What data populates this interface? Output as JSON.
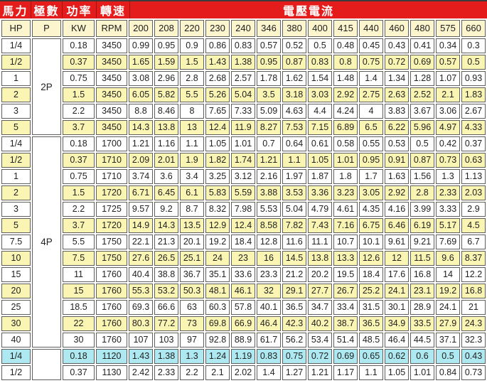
{
  "header": {
    "horsepower": "馬力",
    "poles": "極數",
    "power": "功率",
    "speed": "轉速",
    "voltage_current": "電壓電流"
  },
  "colors": {
    "accent_red": "#e41d1c",
    "row_yellow": "#fbf5b4",
    "row_blue": "#aee9f1",
    "header_cream": "#fdf5cd"
  },
  "table": {
    "columns": [
      "HP",
      "P",
      "KW",
      "RPM",
      "200",
      "208",
      "220",
      "230",
      "240",
      "346",
      "380",
      "400",
      "415",
      "440",
      "460",
      "480",
      "575",
      "660"
    ],
    "sections": [
      {
        "pole_label": "2P",
        "rows": [
          {
            "hp": "1/4",
            "kw": "0.18",
            "rpm": "3450",
            "highlight": "white",
            "currents": [
              "0.99",
              "0.95",
              "0.9",
              "0.86",
              "0.83",
              "0.57",
              "0.52",
              "0.5",
              "0.48",
              "0.45",
              "0.43",
              "0.41",
              "0.34",
              "0.3"
            ]
          },
          {
            "hp": "1/2",
            "kw": "0.37",
            "rpm": "3450",
            "highlight": "yellow",
            "currents": [
              "1.65",
              "1.59",
              "1.5",
              "1.43",
              "1.38",
              "0.95",
              "0.87",
              "0.83",
              "0.8",
              "0.75",
              "0.72",
              "0.69",
              "0.57",
              "0.5"
            ]
          },
          {
            "hp": "1",
            "kw": "0.75",
            "rpm": "3450",
            "highlight": "white",
            "currents": [
              "3.08",
              "2.96",
              "2.8",
              "2.68",
              "2.57",
              "1.78",
              "1.62",
              "1.54",
              "1.48",
              "1.4",
              "1.34",
              "1.28",
              "1.07",
              "0.93"
            ]
          },
          {
            "hp": "2",
            "kw": "1.5",
            "rpm": "3450",
            "highlight": "yellow",
            "currents": [
              "6.05",
              "5.82",
              "5.5",
              "5.26",
              "5.04",
              "3.5",
              "3.18",
              "3.03",
              "2.92",
              "2.75",
              "2.63",
              "2.52",
              "2.1",
              "1.83"
            ]
          },
          {
            "hp": "3",
            "kw": "2.2",
            "rpm": "3450",
            "highlight": "white",
            "currents": [
              "8.8",
              "8.46",
              "8",
              "7.65",
              "7.33",
              "5.09",
              "4.63",
              "4.4",
              "4.24",
              "4",
              "3.83",
              "3.67",
              "3.06",
              "2.67"
            ]
          },
          {
            "hp": "5",
            "kw": "3.7",
            "rpm": "3450",
            "highlight": "yellow",
            "currents": [
              "14.3",
              "13.8",
              "13",
              "12.4",
              "11.9",
              "8.27",
              "7.53",
              "7.15",
              "6.89",
              "6.5",
              "6.22",
              "5.96",
              "4.97",
              "4.33"
            ]
          }
        ]
      },
      {
        "pole_label": "4P",
        "rows": [
          {
            "hp": "1/4",
            "kw": "0.18",
            "rpm": "1700",
            "highlight": "white",
            "currents": [
              "1.21",
              "1.16",
              "1.1",
              "1.05",
              "1.01",
              "0.7",
              "0.64",
              "0.61",
              "0.58",
              "0.55",
              "0.53",
              "0.5",
              "0.42",
              "0.37"
            ]
          },
          {
            "hp": "1/2",
            "kw": "0.37",
            "rpm": "1710",
            "highlight": "yellow",
            "currents": [
              "2.09",
              "2.01",
              "1.9",
              "1.82",
              "1.74",
              "1.21",
              "1.1",
              "1.05",
              "1.01",
              "0.95",
              "0.91",
              "0.87",
              "0.73",
              "0.63"
            ]
          },
          {
            "hp": "1",
            "kw": "0.75",
            "rpm": "1710",
            "highlight": "white",
            "currents": [
              "3.74",
              "3.6",
              "3.4",
              "3.25",
              "3.12",
              "2.16",
              "1.97",
              "1.87",
              "1.8",
              "1.7",
              "1.63",
              "1.56",
              "1.3",
              "1.13"
            ]
          },
          {
            "hp": "2",
            "kw": "1.5",
            "rpm": "1720",
            "highlight": "yellow",
            "currents": [
              "6.71",
              "6.45",
              "6.1",
              "5.83",
              "5.59",
              "3.88",
              "3.53",
              "3.36",
              "3.23",
              "3.05",
              "2.92",
              "2.8",
              "2.33",
              "2.03"
            ]
          },
          {
            "hp": "3",
            "kw": "2.2",
            "rpm": "1725",
            "highlight": "white",
            "currents": [
              "9.57",
              "9.2",
              "8.7",
              "8.32",
              "7.98",
              "5.53",
              "5.04",
              "4.79",
              "4.61",
              "4.35",
              "4.16",
              "3.99",
              "3.33",
              "2.9"
            ]
          },
          {
            "hp": "5",
            "kw": "3.7",
            "rpm": "1720",
            "highlight": "yellow",
            "currents": [
              "14.9",
              "14.3",
              "13.5",
              "12.9",
              "12.4",
              "8.58",
              "7.82",
              "7.43",
              "7.16",
              "6.75",
              "6.46",
              "6.19",
              "5.17",
              "4.5"
            ]
          },
          {
            "hp": "7.5",
            "kw": "5.5",
            "rpm": "1750",
            "highlight": "white",
            "currents": [
              "22.1",
              "21.3",
              "20.1",
              "19.2",
              "18.4",
              "12.8",
              "11.6",
              "11.1",
              "10.7",
              "10.1",
              "9.61",
              "9.21",
              "7.69",
              "6.7"
            ]
          },
          {
            "hp": "10",
            "kw": "7.5",
            "rpm": "1750",
            "highlight": "yellow",
            "currents": [
              "27.6",
              "26.5",
              "25.1",
              "24",
              "23",
              "16",
              "14.5",
              "13.8",
              "13.3",
              "12.6",
              "12",
              "11.5",
              "9.6",
              "8.37"
            ]
          },
          {
            "hp": "15",
            "kw": "11",
            "rpm": "1760",
            "highlight": "white",
            "currents": [
              "40.4",
              "38.8",
              "36.7",
              "35.1",
              "33.6",
              "23.3",
              "21.2",
              "20.2",
              "19.5",
              "18.4",
              "17.6",
              "16.8",
              "14",
              "12.2"
            ]
          },
          {
            "hp": "20",
            "kw": "15",
            "rpm": "1760",
            "highlight": "yellow",
            "currents": [
              "55.3",
              "53.2",
              "50.3",
              "48.1",
              "46.1",
              "32",
              "29.1",
              "27.7",
              "26.7",
              "25.2",
              "24.1",
              "23.1",
              "19.2",
              "16.8"
            ]
          },
          {
            "hp": "25",
            "kw": "18.5",
            "rpm": "1760",
            "highlight": "white",
            "currents": [
              "69.3",
              "66.6",
              "63",
              "60.3",
              "57.8",
              "40.1",
              "36.5",
              "34.7",
              "33.4",
              "31.5",
              "30.1",
              "28.9",
              "24.1",
              "21"
            ]
          },
          {
            "hp": "30",
            "kw": "22",
            "rpm": "1760",
            "highlight": "yellow",
            "currents": [
              "80.3",
              "77.2",
              "73",
              "69.8",
              "66.9",
              "46.4",
              "42.3",
              "40.2",
              "38.7",
              "36.5",
              "34.9",
              "33.5",
              "27.9",
              "24.3"
            ]
          },
          {
            "hp": "40",
            "kw": "30",
            "rpm": "1760",
            "highlight": "white",
            "currents": [
              "107",
              "103",
              "97",
              "92.8",
              "88.9",
              "61.7",
              "56.2",
              "53.4",
              "51.4",
              "48.5",
              "46.4",
              "44.5",
              "37.1",
              "32.3"
            ]
          }
        ]
      },
      {
        "pole_label": "",
        "rows": [
          {
            "hp": "1/4",
            "kw": "0.18",
            "rpm": "1120",
            "highlight": "blue",
            "currents": [
              "1.43",
              "1.38",
              "1.3",
              "1.24",
              "1.19",
              "0.83",
              "0.75",
              "0.72",
              "0.69",
              "0.65",
              "0.62",
              "0.6",
              "0.5",
              "0.43"
            ]
          },
          {
            "hp": "1/2",
            "kw": "0.37",
            "rpm": "1130",
            "highlight": "white",
            "currents": [
              "2.42",
              "2.33",
              "2.2",
              "2.1",
              "2.02",
              "1.4",
              "1.27",
              "1.21",
              "1.17",
              "1.1",
              "1.05",
              "1.01",
              "0.84",
              "0.73"
            ]
          }
        ]
      }
    ]
  }
}
